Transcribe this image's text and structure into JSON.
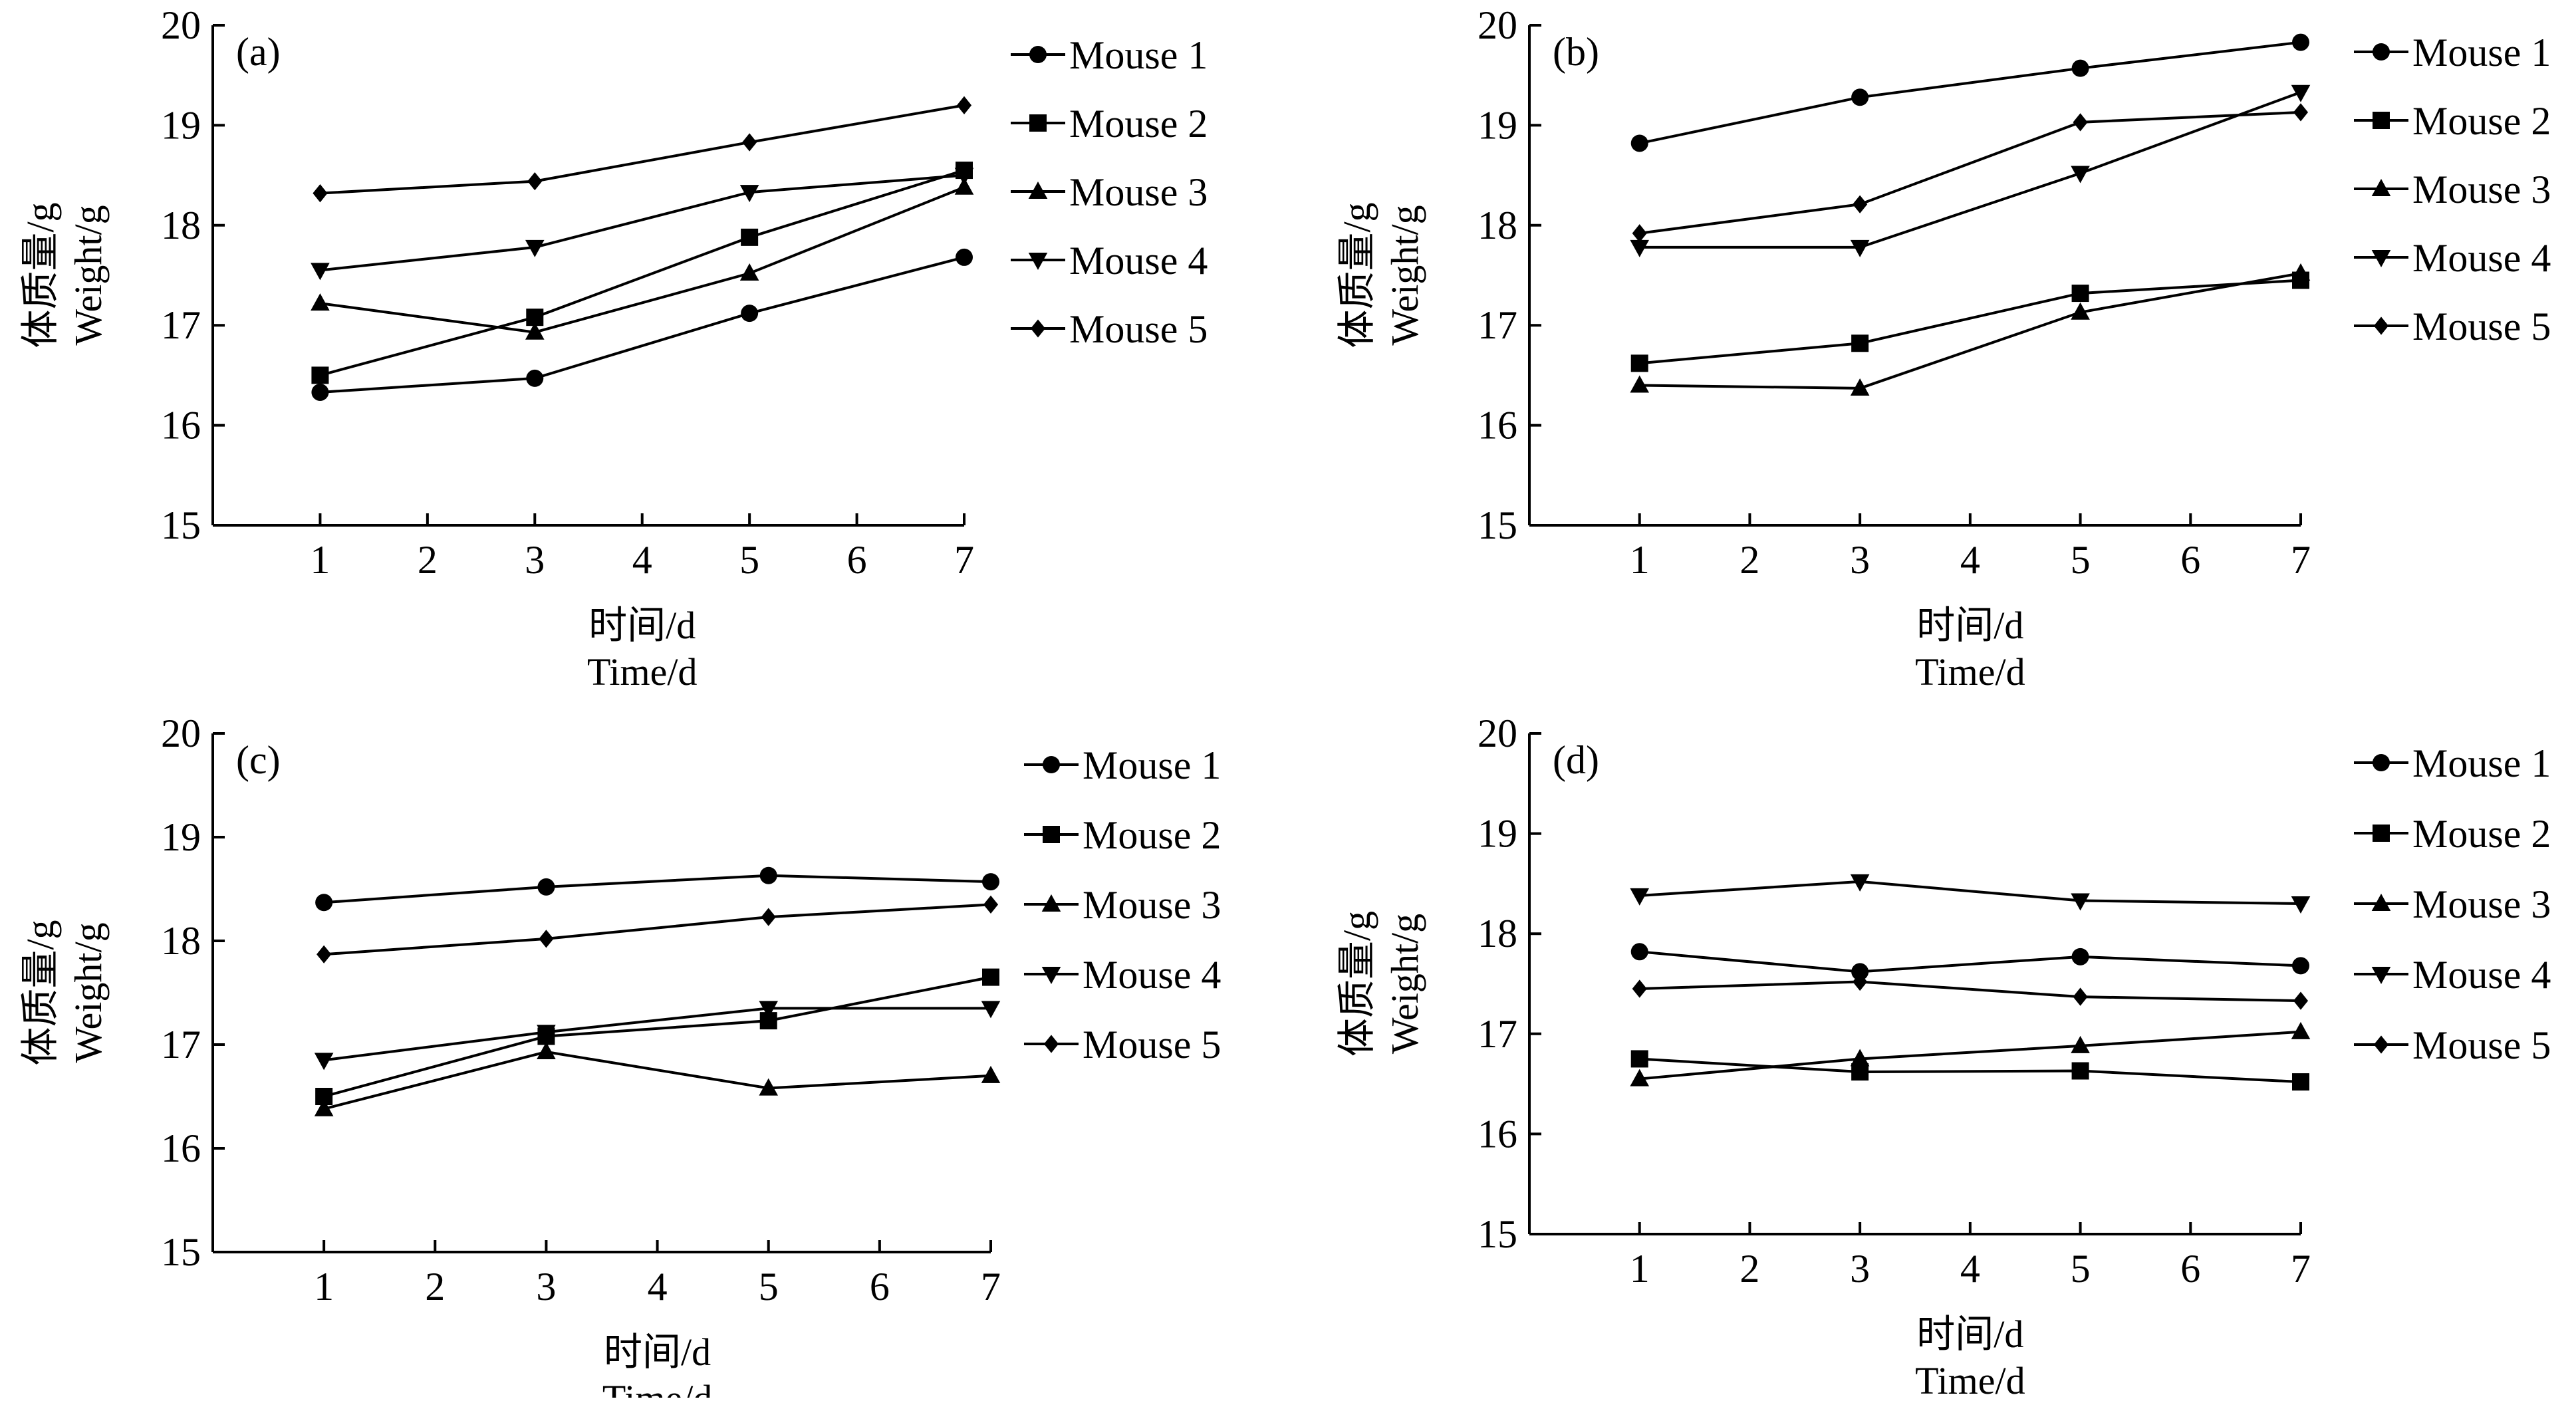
{
  "colors": {
    "line": "#000000",
    "background": "#ffffff"
  },
  "chart_data": [
    {
      "type": "line",
      "panel_label": "(a)",
      "ylabel_cn": "体质量/g",
      "ylabel_en": "Weight/g",
      "xlabel_cn": "时间/d",
      "xlabel_en": "Time/d",
      "xlim": [
        0,
        7
      ],
      "ylim": [
        15,
        20
      ],
      "x_ticks": [
        1,
        2,
        3,
        4,
        5,
        6,
        7
      ],
      "y_ticks": [
        15,
        16,
        17,
        18,
        19,
        20
      ],
      "x": [
        1,
        3,
        5,
        7
      ],
      "legend_position": "right",
      "series": [
        {
          "name": "Mouse 1",
          "marker": "circle",
          "values": [
            16.33,
            16.47,
            17.12,
            17.68
          ]
        },
        {
          "name": "Mouse 2",
          "marker": "square",
          "values": [
            16.5,
            17.08,
            17.88,
            18.55
          ]
        },
        {
          "name": "Mouse 3",
          "marker": "triangle-up",
          "values": [
            17.22,
            16.93,
            17.52,
            18.38
          ]
        },
        {
          "name": "Mouse 4",
          "marker": "triangle-down",
          "values": [
            17.55,
            17.78,
            18.33,
            18.5
          ]
        },
        {
          "name": "Mouse 5",
          "marker": "diamond",
          "values": [
            18.32,
            18.44,
            18.83,
            19.2
          ]
        }
      ]
    },
    {
      "type": "line",
      "panel_label": "(b)",
      "ylabel_cn": "体质量/g",
      "ylabel_en": "Weight/g",
      "xlabel_cn": "时间/d",
      "xlabel_en": "Time/d",
      "xlim": [
        0,
        7
      ],
      "ylim": [
        15,
        20
      ],
      "x_ticks": [
        1,
        2,
        3,
        4,
        5,
        6,
        7
      ],
      "y_ticks": [
        15,
        16,
        17,
        18,
        19,
        20
      ],
      "x": [
        1,
        3,
        5,
        7
      ],
      "legend_position": "right",
      "series": [
        {
          "name": "Mouse 1",
          "marker": "circle",
          "values": [
            18.82,
            19.28,
            19.57,
            19.83
          ]
        },
        {
          "name": "Mouse 2",
          "marker": "square",
          "values": [
            16.62,
            16.82,
            17.32,
            17.45
          ]
        },
        {
          "name": "Mouse 3",
          "marker": "triangle-up",
          "values": [
            16.4,
            16.37,
            17.13,
            17.52
          ]
        },
        {
          "name": "Mouse 4",
          "marker": "triangle-down",
          "values": [
            17.78,
            17.78,
            18.52,
            19.33
          ]
        },
        {
          "name": "Mouse 5",
          "marker": "diamond",
          "values": [
            17.92,
            18.21,
            19.03,
            19.13
          ]
        }
      ]
    },
    {
      "type": "line",
      "panel_label": "(c)",
      "ylabel_cn": "体质量/g",
      "ylabel_en": "Weight/g",
      "xlabel_cn": "时间/d",
      "xlabel_en": "Time/d",
      "xlim": [
        0,
        7
      ],
      "ylim": [
        15,
        20
      ],
      "x_ticks": [
        1,
        2,
        3,
        4,
        5,
        6,
        7
      ],
      "y_ticks": [
        15,
        16,
        17,
        18,
        19,
        20
      ],
      "x": [
        1,
        3,
        5,
        7
      ],
      "legend_position": "right",
      "series": [
        {
          "name": "Mouse 1",
          "marker": "circle",
          "values": [
            18.37,
            18.52,
            18.63,
            18.57
          ]
        },
        {
          "name": "Mouse 2",
          "marker": "square",
          "values": [
            16.5,
            17.08,
            17.23,
            17.65
          ]
        },
        {
          "name": "Mouse 3",
          "marker": "triangle-up",
          "values": [
            16.38,
            16.93,
            16.58,
            16.7
          ]
        },
        {
          "name": "Mouse 4",
          "marker": "triangle-down",
          "values": [
            16.85,
            17.12,
            17.35,
            17.35
          ]
        },
        {
          "name": "Mouse 5",
          "marker": "diamond",
          "values": [
            17.87,
            18.02,
            18.23,
            18.35
          ]
        }
      ]
    },
    {
      "type": "line",
      "panel_label": "(d)",
      "ylabel_cn": "体质量/g",
      "ylabel_en": "Weight/g",
      "xlabel_cn": "时间/d",
      "xlabel_en": "Time/d",
      "xlim": [
        0,
        7
      ],
      "ylim": [
        15,
        20
      ],
      "x_ticks": [
        1,
        2,
        3,
        4,
        5,
        6,
        7
      ],
      "y_ticks": [
        15,
        16,
        17,
        18,
        19,
        20
      ],
      "x": [
        1,
        3,
        5,
        7
      ],
      "legend_position": "right",
      "series": [
        {
          "name": "Mouse 1",
          "marker": "circle",
          "values": [
            17.82,
            17.62,
            17.77,
            17.68
          ]
        },
        {
          "name": "Mouse 2",
          "marker": "square",
          "values": [
            16.75,
            16.62,
            16.63,
            16.52
          ]
        },
        {
          "name": "Mouse 3",
          "marker": "triangle-up",
          "values": [
            16.55,
            16.75,
            16.88,
            17.02
          ]
        },
        {
          "name": "Mouse 4",
          "marker": "triangle-down",
          "values": [
            18.38,
            18.52,
            18.33,
            18.3
          ]
        },
        {
          "name": "Mouse 5",
          "marker": "diamond",
          "values": [
            17.45,
            17.52,
            17.37,
            17.33
          ]
        }
      ]
    }
  ]
}
